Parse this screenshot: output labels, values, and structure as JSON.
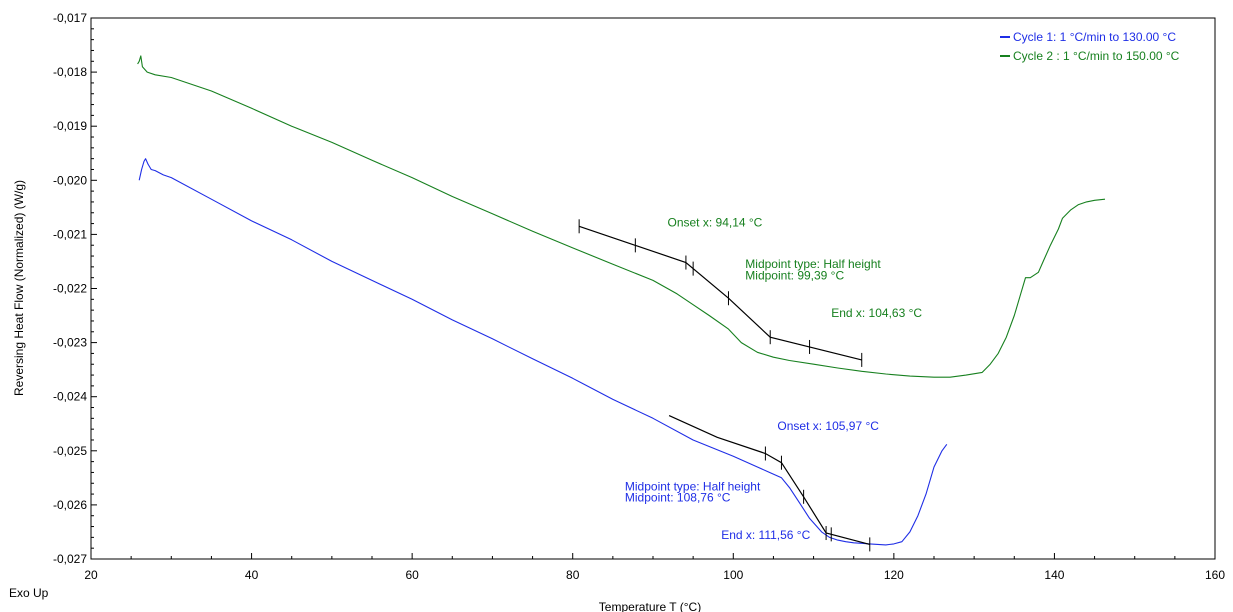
{
  "chart_data": {
    "type": "line",
    "title": "",
    "xlabel": "Temperature T (°C)",
    "ylabel": "Reversing Heat Flow (Normalized) (W/g)",
    "corner_label": "Exo Up",
    "xlim": [
      20,
      160
    ],
    "ylim": [
      -0.027,
      -0.017
    ],
    "x_ticks": [
      20,
      40,
      60,
      80,
      100,
      120,
      140,
      160
    ],
    "x_tick_labels": [
      "20",
      "40",
      "60",
      "80",
      "100",
      "120",
      "140",
      "160"
    ],
    "y_ticks": [
      -0.017,
      -0.018,
      -0.019,
      -0.02,
      -0.021,
      -0.022,
      -0.023,
      -0.024,
      -0.025,
      -0.026,
      -0.027
    ],
    "y_tick_labels": [
      "-0,017",
      "-0,018",
      "-0,019",
      "-0,020",
      "-0,021",
      "-0,022",
      "-0,023",
      "-0,024",
      "-0,025",
      "-0,026",
      "-0,027"
    ],
    "grid": false,
    "legend_position": "top-right",
    "series": [
      {
        "name": "Cycle 1:  1 °C/min to 130.00  °C",
        "color": "#1f2ee6",
        "x": [
          26.0,
          26.3,
          26.6,
          26.8,
          27.1,
          27.5,
          28.0,
          29,
          30,
          35,
          40,
          45,
          50,
          55,
          60,
          65,
          70,
          75,
          80,
          85,
          90,
          95,
          100,
          103,
          104.5,
          106,
          107,
          108.2,
          109.5,
          111,
          112,
          113,
          114,
          115,
          116,
          117,
          118,
          119,
          120,
          121,
          122,
          123,
          124,
          125,
          126,
          126.6
        ],
        "y": [
          -0.02,
          -0.0198,
          -0.01965,
          -0.0196,
          -0.0197,
          -0.0198,
          -0.01982,
          -0.0199,
          -0.01995,
          -0.02035,
          -0.02075,
          -0.0211,
          -0.0215,
          -0.02185,
          -0.0222,
          -0.02258,
          -0.02293,
          -0.0233,
          -0.02366,
          -0.02405,
          -0.0244,
          -0.0248,
          -0.0251,
          -0.0253,
          -0.0254,
          -0.0255,
          -0.02568,
          -0.02595,
          -0.02625,
          -0.0265,
          -0.0266,
          -0.02665,
          -0.02668,
          -0.0267,
          -0.02671,
          -0.02672,
          -0.02673,
          -0.02674,
          -0.02672,
          -0.02668,
          -0.0265,
          -0.0262,
          -0.0258,
          -0.0253,
          -0.025,
          -0.02488
        ]
      },
      {
        "name": "Cycle 2 : 1 °C/min to 150.00  °C",
        "color": "#17801f",
        "x": [
          25.8,
          26.0,
          26.2,
          26.4,
          27,
          28,
          30,
          35,
          40,
          45,
          50,
          55,
          60,
          65,
          70,
          75,
          80,
          85,
          90,
          93,
          95,
          97,
          99.4,
          101,
          103,
          105,
          107,
          110,
          113,
          116,
          119,
          122,
          125,
          127,
          129,
          131,
          132,
          133,
          134,
          135,
          135.8,
          136.4,
          137,
          138,
          138.6,
          139.5,
          140.5,
          141,
          142,
          143,
          144,
          145,
          146.3
        ],
        "y": [
          -0.01785,
          -0.0178,
          -0.0177,
          -0.0179,
          -0.018,
          -0.01805,
          -0.0181,
          -0.01835,
          -0.01867,
          -0.019,
          -0.0193,
          -0.01963,
          -0.01995,
          -0.0203,
          -0.02062,
          -0.02094,
          -0.02125,
          -0.02155,
          -0.02185,
          -0.0221,
          -0.0223,
          -0.0225,
          -0.02275,
          -0.023,
          -0.02318,
          -0.02327,
          -0.02333,
          -0.0234,
          -0.02347,
          -0.02353,
          -0.02358,
          -0.02362,
          -0.02364,
          -0.02364,
          -0.0236,
          -0.02355,
          -0.0234,
          -0.0232,
          -0.0229,
          -0.0225,
          -0.0221,
          -0.0218,
          -0.0218,
          -0.0217,
          -0.0215,
          -0.0212,
          -0.0209,
          -0.0207,
          -0.02055,
          -0.02045,
          -0.0204,
          -0.02037,
          -0.02035
        ]
      }
    ],
    "annotations": [
      {
        "text": "Onset x: 94,14 °C",
        "color": "#17801f",
        "x": 91.8,
        "y": -0.02085
      },
      {
        "text": "Midpoint type: Half height",
        "color": "#17801f",
        "x": 101.5,
        "y": -0.02162
      },
      {
        "text": "Midpoint: 99,39 °C",
        "color": "#17801f",
        "x": 101.5,
        "y": -0.02183
      },
      {
        "text": "End x: 104,63 °C",
        "color": "#17801f",
        "x": 112.2,
        "y": -0.02253
      },
      {
        "text": "Onset x: 105,97 °C",
        "color": "#1f2ee6",
        "x": 105.5,
        "y": -0.02462
      },
      {
        "text": "Midpoint type: Half height",
        "color": "#1f2ee6",
        "x": 86.5,
        "y": -0.02573
      },
      {
        "text": "Midpoint: 108,76 °C",
        "color": "#1f2ee6",
        "x": 86.5,
        "y": -0.02594
      },
      {
        "text": "End x: 111,56 °C",
        "color": "#1f2ee6",
        "x": 98.5,
        "y": -0.02663
      }
    ],
    "tangent_lines": [
      {
        "color": "#000000",
        "x": [
          80.8,
          94.1,
          99.4,
          104.6,
          116.0
        ],
        "y": [
          -0.02085,
          -0.02152,
          -0.02218,
          -0.0229,
          -0.02332
        ],
        "ticks_x": [
          80.8,
          87.8,
          94.1,
          95.0,
          99.4,
          104.6,
          109.5,
          116.0
        ]
      },
      {
        "color": "#000000",
        "x": [
          92.0,
          98.0,
          104.0,
          106.0,
          108.76,
          111.56,
          117.0
        ],
        "y": [
          -0.02435,
          -0.02475,
          -0.02505,
          -0.02522,
          -0.02585,
          -0.02652,
          -0.02673
        ],
        "ticks_x": [
          104.0,
          106.0,
          108.76,
          111.56,
          112.2,
          117.0
        ]
      }
    ]
  }
}
